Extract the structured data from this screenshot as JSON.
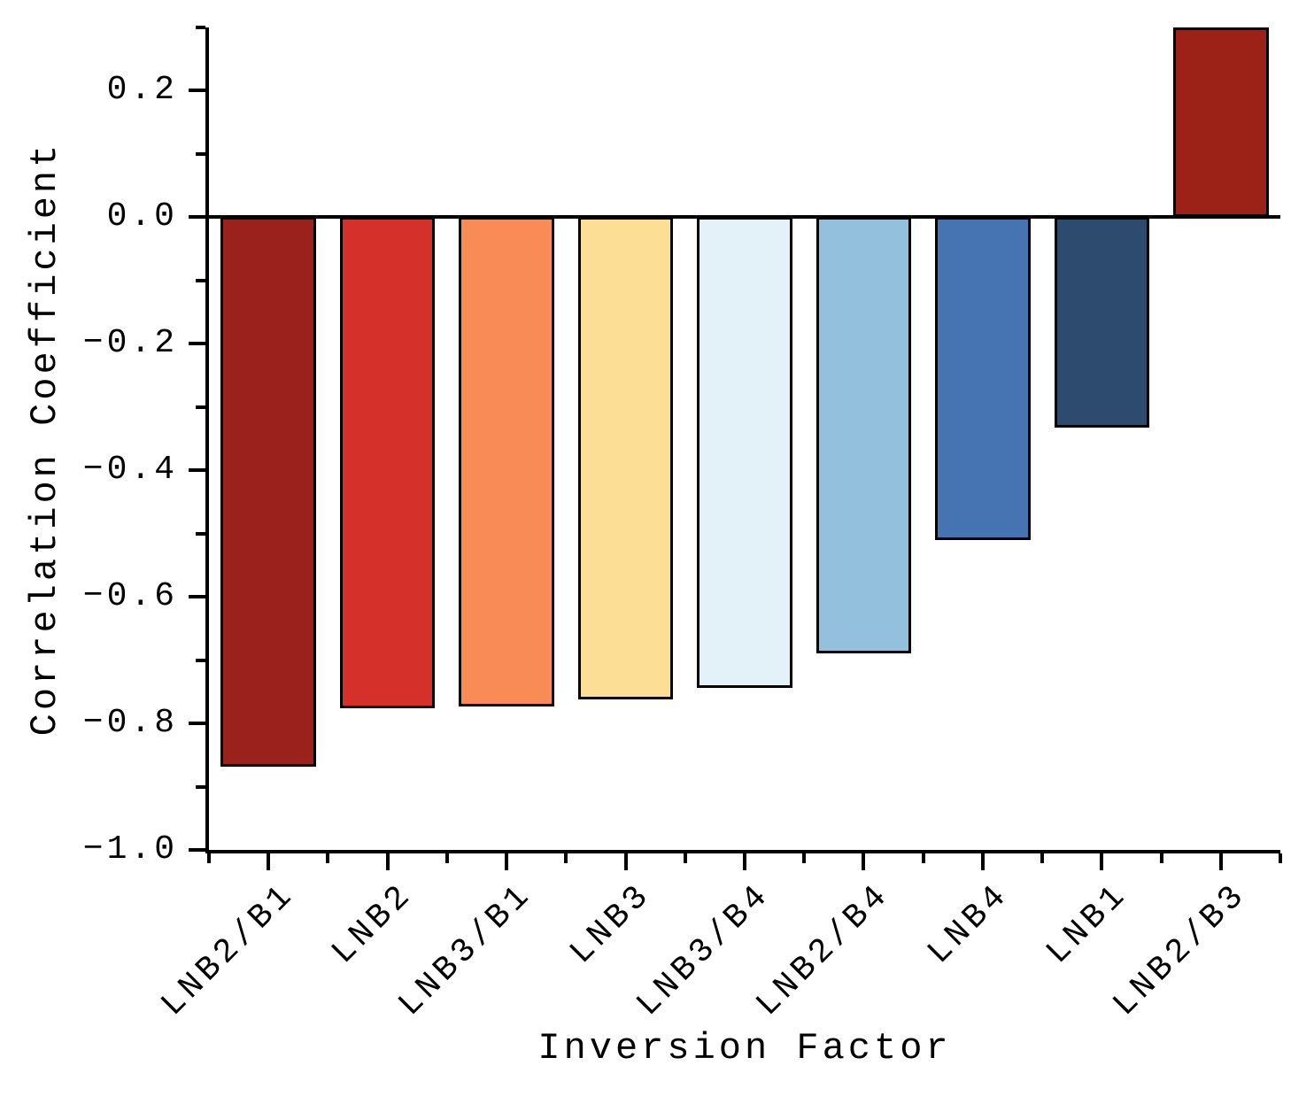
{
  "chart_data": {
    "type": "bar",
    "title": "",
    "xlabel": "Inversion Factor",
    "ylabel": "Correlation Coefficient",
    "categories": [
      "LNB2/B1",
      "LNB2",
      "LNB3/B1",
      "LNB3",
      "LNB3/B4",
      "LNB2/B4",
      "LNB4",
      "LNB1",
      "LNB2/B3"
    ],
    "values": [
      -0.868,
      -0.776,
      -0.773,
      -0.762,
      -0.744,
      -0.69,
      -0.51,
      -0.332,
      0.3
    ],
    "bar_colors": [
      "#9a211c",
      "#d5302a",
      "#f98b57",
      "#fcdf94",
      "#e2f2f8",
      "#92c0dd",
      "#4674b3",
      "#2c4b6f",
      "#9c2218"
    ],
    "bar_edge_color": "#000000",
    "axis_color": "#000000",
    "background_color": "#ffffff",
    "ylim": [
      -1.0,
      0.3
    ],
    "yticks": [
      0.2,
      0.0,
      -0.2,
      -0.4,
      -0.6,
      -0.8,
      -1.0
    ],
    "ytick_labels": [
      "0.2",
      "0.0",
      "−0.2",
      "−0.4",
      "−0.6",
      "−0.8",
      "−1.0"
    ],
    "yticks_minor": [
      0.3,
      0.1,
      -0.1,
      -0.3,
      -0.5,
      -0.7,
      -0.9
    ],
    "bar_width_fraction": 0.8,
    "grid": false,
    "legend": null,
    "zero_baseline": true,
    "x_tick_rotation_deg": 45
  }
}
